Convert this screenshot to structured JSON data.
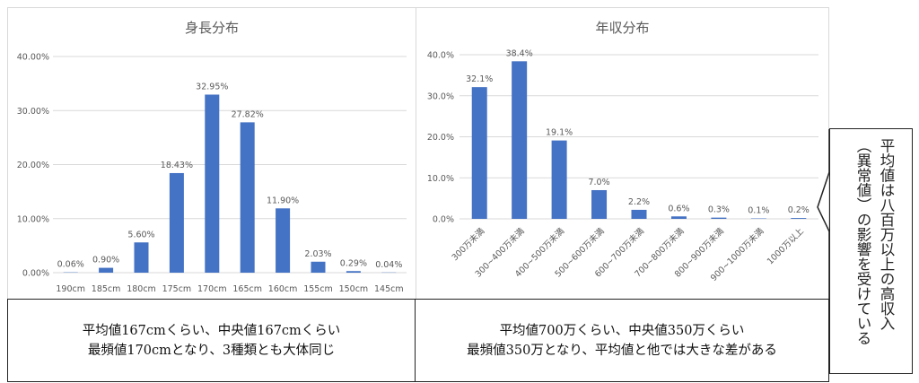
{
  "chart_data": [
    {
      "type": "bar",
      "title": "身長分布",
      "categories": [
        "190cm",
        "185cm",
        "180cm",
        "175cm",
        "170cm",
        "165cm",
        "160cm",
        "155cm",
        "150cm",
        "145cm"
      ],
      "values": [
        0.06,
        0.9,
        5.6,
        18.43,
        32.95,
        27.82,
        11.9,
        2.03,
        0.29,
        0.04
      ],
      "labels": [
        "0.06%",
        "0.90%",
        "5.60%",
        "18.43%",
        "32.95%",
        "27.82%",
        "11.90%",
        "2.03%",
        "0.29%",
        "0.04%"
      ],
      "yticks": [
        "0.00%",
        "10.00%",
        "20.00%",
        "30.00%",
        "40.00%"
      ],
      "ylim": [
        0,
        40
      ],
      "xlabel": "",
      "ylabel": "",
      "grid": true,
      "color": "#4472c4"
    },
    {
      "type": "bar",
      "title": "年収分布",
      "categories": [
        "300万未満",
        "300~400万未満",
        "400~500万未満",
        "500~600万未満",
        "600~700万未満",
        "700~800万未満",
        "800~900万未満",
        "900~1000万未満",
        "1000万以上"
      ],
      "values": [
        32.1,
        38.4,
        19.1,
        7.0,
        2.2,
        0.6,
        0.3,
        0.1,
        0.2
      ],
      "labels": [
        "32.1%",
        "38.4%",
        "19.1%",
        "7.0%",
        "2.2%",
        "0.6%",
        "0.3%",
        "0.1%",
        "0.2%"
      ],
      "yticks": [
        "0.0%",
        "10.0%",
        "20.0%",
        "30.0%",
        "40.0%"
      ],
      "ylim": [
        0,
        40
      ],
      "xlabel": "",
      "ylabel": "",
      "grid": true,
      "color": "#4472c4"
    }
  ],
  "notes": {
    "height": {
      "line1": "平均値167cmくらい、中央値167cmくらい",
      "line2": "最頻値170cmとなり、3種類とも大体同じ"
    },
    "income": {
      "line1": "平均値700万くらい、中央値350万くらい",
      "line2": "最頻値350万となり、平均値と他では大きな差がある"
    },
    "callout": {
      "line1": "平均値は八百万以上の高収入",
      "line2": "（異常値）の影響を受けている"
    }
  }
}
